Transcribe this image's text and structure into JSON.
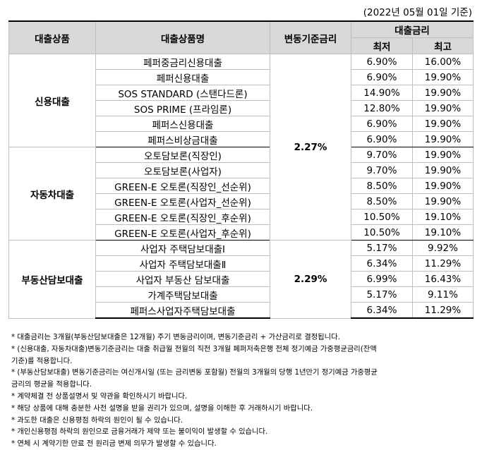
{
  "date_note": "(2022년 05월 01일 기준)",
  "headers": {
    "category": "대출상품",
    "product": "대출상품명",
    "base_rate": "변동기준금리",
    "rate": "대출금리",
    "min": "최저",
    "max": "최고"
  },
  "groups": [
    {
      "category": "신용대출",
      "rows": [
        {
          "name": "페퍼중금리신용대출",
          "min": "6.90%",
          "max": "16.00%"
        },
        {
          "name": "페퍼신용대출",
          "min": "6.90%",
          "max": "19.90%"
        },
        {
          "name": "SOS STANDARD (스탠다드론)",
          "min": "14.90%",
          "max": "19.90%"
        },
        {
          "name": "SOS PRIME (프라임론)",
          "min": "12.80%",
          "max": "19.90%"
        },
        {
          "name": "페퍼스신용대출",
          "min": "6.90%",
          "max": "19.90%"
        },
        {
          "name": "페퍼스비상금대출",
          "min": "6.90%",
          "max": "19.90%"
        }
      ]
    },
    {
      "category": "자동차대출",
      "rows": [
        {
          "name": "오토담보론(직장인)",
          "min": "9.70%",
          "max": "19.90%"
        },
        {
          "name": "오토담보론(사업자)",
          "min": "9.70%",
          "max": "19.90%"
        },
        {
          "name": "GREEN-E 오토론(직장인_선순위)",
          "min": "8.50%",
          "max": "19.90%"
        },
        {
          "name": "GREEN-E 오토론(사업자_선순위)",
          "min": "8.50%",
          "max": "19.90%"
        },
        {
          "name": "GREEN-E 오토론(직장인_후순위)",
          "min": "10.50%",
          "max": "19.10%"
        },
        {
          "name": "GREEN-E 오토론(사업자_후순위)",
          "min": "10.50%",
          "max": "19.10%"
        }
      ]
    },
    {
      "category": "부동산담보대출",
      "rows": [
        {
          "name": "사업자 주택담보대출Ⅰ",
          "min": "5.17%",
          "max": "9.92%"
        },
        {
          "name": "사업자 주택담보대출Ⅱ",
          "min": "6.34%",
          "max": "11.29%"
        },
        {
          "name": "사업자 부동산 담보대출",
          "min": "6.99%",
          "max": "16.43%"
        },
        {
          "name": "가계주택담보대출",
          "min": "5.17%",
          "max": "9.11%"
        },
        {
          "name": "페퍼스사업자주택담보대출",
          "min": "6.34%",
          "max": "11.29%"
        }
      ]
    }
  ],
  "base_rates": {
    "credit_auto": "2.27%",
    "real_estate": "2.29%"
  },
  "notes": [
    "* 대출금리는 3개월(부동산담보대출은 12개월) 주기 변동금리이며, 변동기준금리 + 가산금리로 결정됩니다.",
    "* (신용대출, 자동차대출)변동기준금리는 대출 취급월 전월의 직전 3개월 페퍼저축은행 전체 정기예금 가중평균금리(잔액",
    "기준)를 적용합니다.",
    "* (부동산담보대출) 변동기준금리는 여신개시일 (또는 금리변동 포함월) 전월의 3개월의 당행 1년만기 정기예금 가중평균",
    "금리의 평균을 적용합니다.",
    "* 계약체결 전 상품설명서 및 약관을 확인하시기 바랍니다.",
    "* 해당 상품에 대해 충분한 사전 설명을 받을 권리가 있으며, 설명을 이해한 후 거래하시기 바랍니다.",
    "* 과도한 대출은 신용평점 하락의 원인이 될 수 있습니다.",
    "* 개인신용평점 하락의 원인으로 금융거래가 제약 또는 불이익이 발생할 수 있습니다.",
    "* 연체 시 계약기한 만료 전 원리금 변제 의무가 발생할 수 있습니다."
  ]
}
